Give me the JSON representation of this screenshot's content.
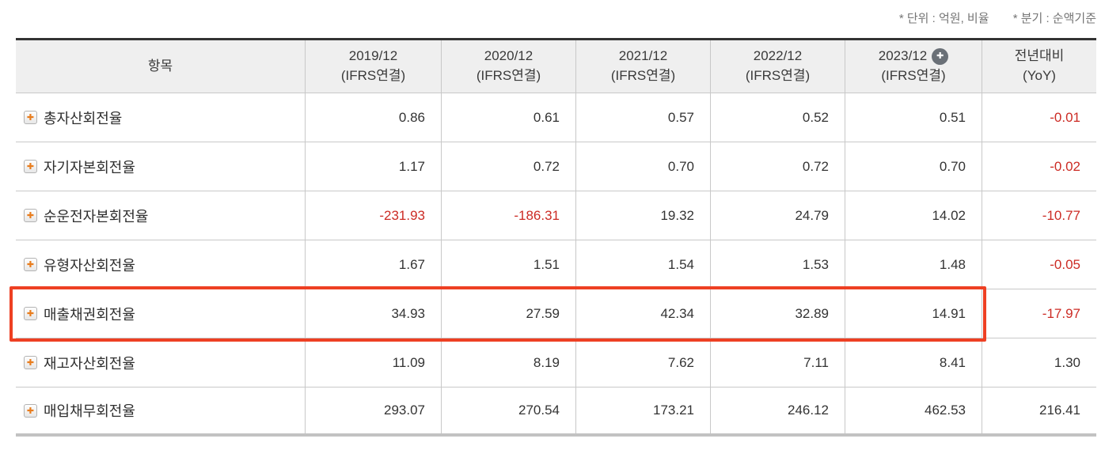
{
  "note": {
    "unit": "* 단위 : 억원, 비율",
    "basis": "* 분기 : 순액기준"
  },
  "table": {
    "header": {
      "item_label": "항목",
      "columns": [
        {
          "line1": "2019/12",
          "line2": "(IFRS연결)",
          "add_icon": false
        },
        {
          "line1": "2020/12",
          "line2": "(IFRS연결)",
          "add_icon": false
        },
        {
          "line1": "2021/12",
          "line2": "(IFRS연결)",
          "add_icon": false
        },
        {
          "line1": "2022/12",
          "line2": "(IFRS연결)",
          "add_icon": false
        },
        {
          "line1": "2023/12",
          "line2": "(IFRS연결)",
          "add_icon": true
        }
      ],
      "yoy_line1": "전년대비",
      "yoy_line2": "(YoY)"
    },
    "rows": [
      {
        "label": "총자산회전율",
        "values": [
          "0.86",
          "0.61",
          "0.57",
          "0.52",
          "0.51"
        ],
        "yoy": "-0.01",
        "highlighted": false
      },
      {
        "label": "자기자본회전율",
        "values": [
          "1.17",
          "0.72",
          "0.70",
          "0.72",
          "0.70"
        ],
        "yoy": "-0.02",
        "highlighted": false
      },
      {
        "label": "순운전자본회전율",
        "values": [
          "-231.93",
          "-186.31",
          "19.32",
          "24.79",
          "14.02"
        ],
        "yoy": "-10.77",
        "highlighted": false
      },
      {
        "label": "유형자산회전율",
        "values": [
          "1.67",
          "1.51",
          "1.54",
          "1.53",
          "1.48"
        ],
        "yoy": "-0.05",
        "highlighted": false
      },
      {
        "label": "매출채권회전율",
        "values": [
          "34.93",
          "27.59",
          "42.34",
          "32.89",
          "14.91"
        ],
        "yoy": "-17.97",
        "highlighted": true
      },
      {
        "label": "재고자산회전율",
        "values": [
          "11.09",
          "8.19",
          "7.62",
          "7.11",
          "8.41"
        ],
        "yoy": "1.30",
        "highlighted": false
      },
      {
        "label": "매입채무회전율",
        "values": [
          "293.07",
          "270.54",
          "173.21",
          "246.12",
          "462.53"
        ],
        "yoy": "216.41",
        "highlighted": false
      }
    ]
  },
  "icons": {
    "expand_row": "plus-in-square",
    "add_period": "plus-in-circle",
    "glyph": "✚"
  },
  "colors": {
    "negative_value": "#cc2b24",
    "highlight_border": "#ee4023",
    "header_bg": "#efefef",
    "header_top_border": "#333333",
    "grid_line": "#c8c8c8",
    "note_text": "#757575",
    "row_plus_orange": "#e87d1e",
    "add_circle_gray": "#6a7077"
  }
}
